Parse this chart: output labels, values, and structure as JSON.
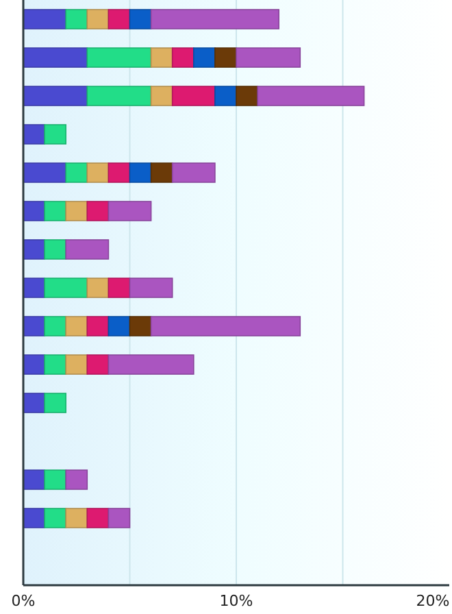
{
  "chart_data": {
    "type": "bar",
    "orientation": "horizontal",
    "stacked": true,
    "categories": [
      null,
      null,
      null,
      null,
      null,
      null,
      null,
      null,
      null,
      null,
      null,
      null,
      null,
      null,
      null
    ],
    "series": [
      {
        "color": "#4a4ad0",
        "values": [
          2,
          3,
          3,
          1,
          2,
          1,
          1,
          1,
          1,
          1,
          1,
          null,
          1,
          1,
          null
        ]
      },
      {
        "color": "#22dd88",
        "values": [
          1,
          3,
          3,
          1,
          1,
          1,
          1,
          2,
          1,
          1,
          1,
          null,
          1,
          1,
          null
        ]
      },
      {
        "color": "#ddb060",
        "values": [
          1,
          1,
          1,
          null,
          1,
          1,
          null,
          1,
          1,
          1,
          null,
          null,
          null,
          1,
          null
        ]
      },
      {
        "color": "#dd1a70",
        "values": [
          1,
          1,
          2,
          null,
          1,
          1,
          null,
          1,
          1,
          1,
          null,
          null,
          null,
          1,
          null
        ]
      },
      {
        "color": "#0a5ec8",
        "values": [
          1,
          1,
          1,
          null,
          1,
          null,
          null,
          null,
          1,
          null,
          null,
          null,
          null,
          null,
          null
        ]
      },
      {
        "color": "#6b3a08",
        "values": [
          null,
          1,
          1,
          null,
          1,
          null,
          null,
          null,
          1,
          null,
          null,
          null,
          null,
          null,
          null
        ]
      },
      {
        "color": "#aa55c0",
        "values": [
          6,
          3,
          5,
          null,
          2,
          2,
          2,
          2,
          7,
          4,
          null,
          null,
          1,
          1,
          null
        ]
      }
    ],
    "xlim": [
      0,
      20
    ],
    "xticks": [
      {
        "value": 0,
        "label": "0%"
      },
      {
        "value": 5,
        "label": null
      },
      {
        "value": 10,
        "label": "10%"
      },
      {
        "value": 15,
        "label": null
      },
      {
        "value": 20,
        "label": "20%"
      }
    ],
    "grid": "x"
  }
}
